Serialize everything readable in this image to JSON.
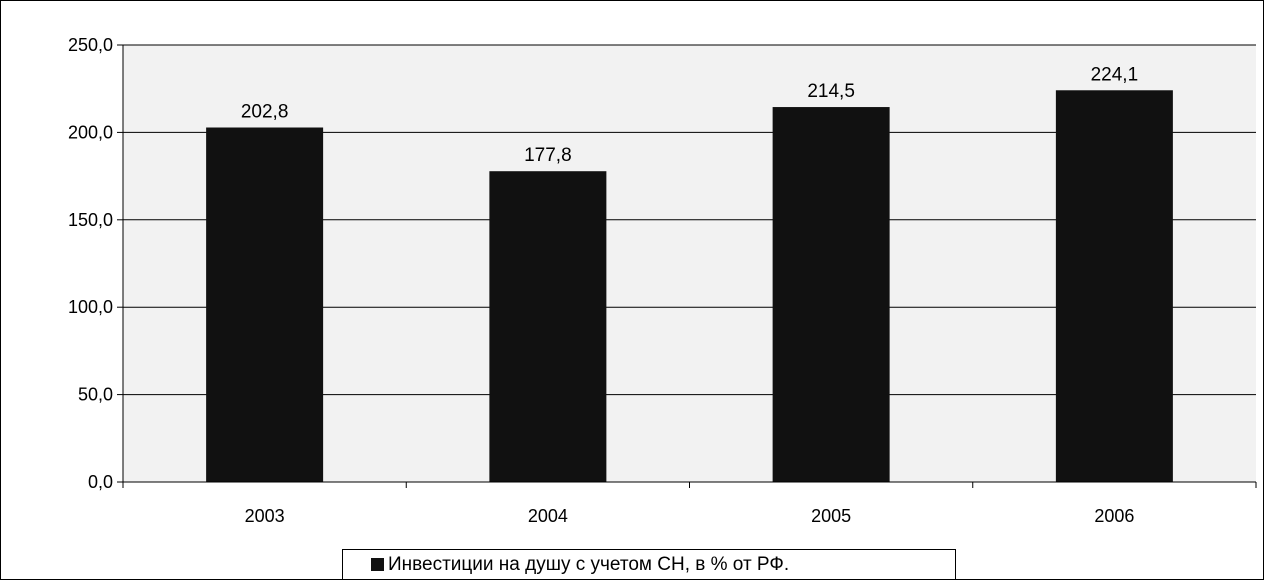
{
  "chart_data": {
    "type": "bar",
    "categories": [
      "2003",
      "2004",
      "2005",
      "2006"
    ],
    "values": [
      202.8,
      177.8,
      214.5,
      224.1
    ],
    "value_labels": [
      "202,8",
      "177,8",
      "214,5",
      "224,1"
    ],
    "y_ticks": [
      "0,0",
      "50,0",
      "100,0",
      "150,0",
      "200,0",
      "250,0"
    ],
    "ylim": [
      0,
      250
    ],
    "grid": true,
    "legend_position": "bottom",
    "series": [
      {
        "name": "Инвестиции на душу с учетом СН, в % от РФ.",
        "values": [
          202.8,
          177.8,
          214.5,
          224.1
        ]
      }
    ],
    "colors": {
      "bar": "#111111",
      "plot_background": "#f2f2f2",
      "grid": "#000000"
    }
  }
}
